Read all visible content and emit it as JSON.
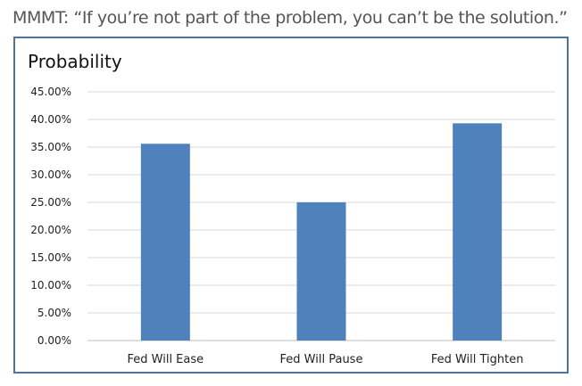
{
  "header": {
    "text": "MMMT: “If you’re not part of the problem, you can’t be the solution.”"
  },
  "colors": {
    "bar": "#4f81bd",
    "frame": "#4a74a8",
    "grid": "#d9d9d9"
  },
  "chart_data": {
    "type": "bar",
    "title": "Probability",
    "xlabel": "",
    "ylabel": "",
    "categories": [
      "Fed Will Ease",
      "Fed Will Pause",
      "Fed Will Tighten"
    ],
    "values": [
      0.356,
      0.25,
      0.393
    ],
    "ylim": [
      0,
      0.45
    ],
    "yticks": [
      0,
      0.05,
      0.1,
      0.15,
      0.2,
      0.25,
      0.3,
      0.35,
      0.4,
      0.45
    ],
    "ytick_labels": [
      "0.00%",
      "5.00%",
      "10.00%",
      "15.00%",
      "20.00%",
      "25.00%",
      "30.00%",
      "35.00%",
      "40.00%",
      "45.00%"
    ],
    "grid": true,
    "legend": "none"
  }
}
